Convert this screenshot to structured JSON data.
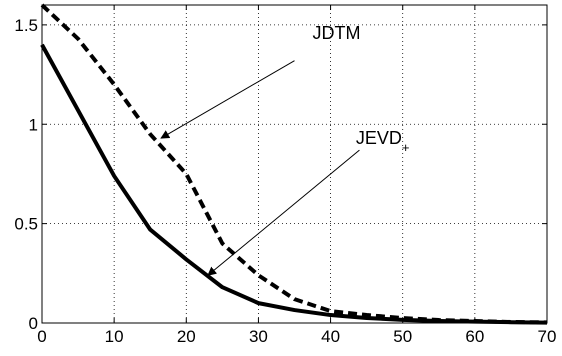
{
  "chart_data": {
    "type": "line",
    "title": "",
    "xlabel": "",
    "ylabel": "",
    "xlim": [
      0,
      70
    ],
    "ylim": [
      0,
      1.6
    ],
    "grid": true,
    "x_ticks": [
      {
        "value": 0,
        "label": "0"
      },
      {
        "value": 10,
        "label": "10"
      },
      {
        "value": 20,
        "label": "20"
      },
      {
        "value": 30,
        "label": "30"
      },
      {
        "value": 40,
        "label": "40"
      },
      {
        "value": 50,
        "label": "50"
      },
      {
        "value": 60,
        "label": "60"
      },
      {
        "value": 70,
        "label": "70"
      }
    ],
    "y_ticks": [
      {
        "value": 0,
        "label": "0"
      },
      {
        "value": 0.5,
        "label": "0.5"
      },
      {
        "value": 1,
        "label": "1"
      },
      {
        "value": 1.5,
        "label": "1.5"
      }
    ],
    "series": [
      {
        "name": "JDTM",
        "style": "dashed",
        "color": "#000000",
        "x": [
          0,
          5,
          10,
          15,
          20,
          25,
          30,
          35,
          40,
          45,
          50,
          55,
          60,
          65,
          70
        ],
        "y": [
          1.6,
          1.43,
          1.2,
          0.95,
          0.75,
          0.4,
          0.24,
          0.12,
          0.06,
          0.04,
          0.025,
          0.015,
          0.01,
          0.005,
          0.003
        ]
      },
      {
        "name": "JEVD",
        "name_subscript": "+",
        "style": "solid",
        "color": "#000000",
        "x": [
          0,
          5,
          10,
          15,
          20,
          25,
          30,
          35,
          40,
          45,
          50,
          55,
          60,
          65,
          70
        ],
        "y": [
          1.4,
          1.07,
          0.74,
          0.47,
          0.32,
          0.18,
          0.1,
          0.065,
          0.04,
          0.025,
          0.016,
          0.01,
          0.007,
          0.004,
          0.002
        ]
      }
    ],
    "annotations": [
      {
        "label": "JDTM",
        "sub": "",
        "text_x": 37.5,
        "text_y": 1.43,
        "arrow_from": [
          35,
          1.32
        ],
        "arrow_to": [
          16.5,
          0.93
        ]
      },
      {
        "label": "JEVD",
        "sub": "+",
        "text_x": 43.5,
        "text_y": 0.9,
        "arrow_from": [
          44,
          0.87
        ],
        "arrow_to": [
          23,
          0.24
        ]
      }
    ]
  }
}
